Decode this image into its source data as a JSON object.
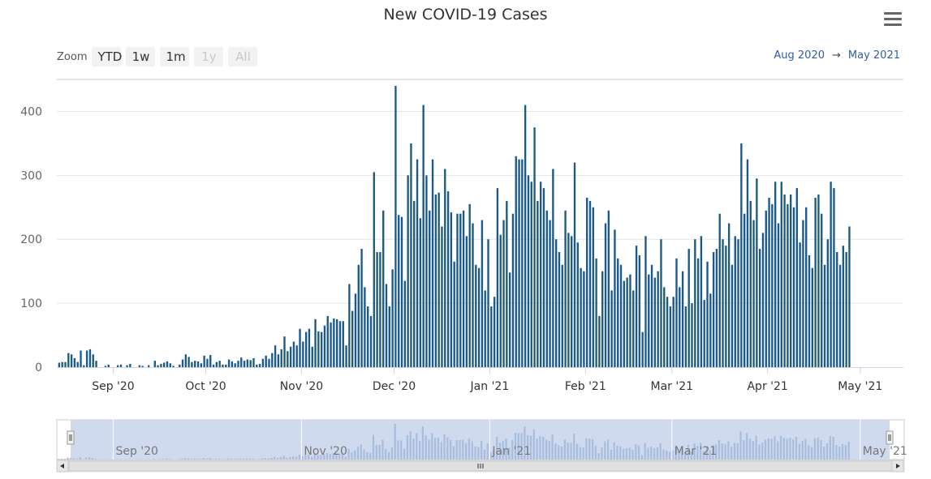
{
  "title": "New COVID-19 Cases",
  "menu_icon": "hamburger-menu-icon",
  "zoom": {
    "label": "Zoom",
    "buttons": [
      {
        "label": "YTD",
        "enabled": true
      },
      {
        "label": "1w",
        "enabled": true
      },
      {
        "label": "1m",
        "enabled": true
      },
      {
        "label": "1y",
        "enabled": false
      },
      {
        "label": "All",
        "enabled": false
      }
    ]
  },
  "range": {
    "from": "Aug 2020",
    "arrow": "→",
    "to": "May 2021"
  },
  "colors": {
    "bar": "#1b5a87",
    "nav_bar": "#a9bede",
    "nav_mask": "#cfdaee",
    "grid": "#e6e6e6"
  },
  "chart_data": {
    "type": "bar",
    "title": "New COVID-19 Cases",
    "x_start": "2020-08-14",
    "x_end": "2021-05-14",
    "ylim": [
      0,
      450
    ],
    "y_ticks": [
      0,
      100,
      200,
      300,
      400
    ],
    "x_ticks": [
      "Sep '20",
      "Oct '20",
      "Nov '20",
      "Dec '20",
      "Jan '21",
      "Feb '21",
      "Mar '21",
      "Apr '21",
      "May '21"
    ],
    "x_tick_dates": [
      "2020-09-01",
      "2020-10-01",
      "2020-11-01",
      "2020-12-01",
      "2021-01-01",
      "2021-02-01",
      "2021-03-01",
      "2021-04-01",
      "2021-05-01"
    ],
    "navigator_ticks": [
      "Sep '20",
      "Nov '20",
      "Jan '21",
      "Mar '21",
      "May '21"
    ],
    "navigator_tick_dates": [
      "2020-09-01",
      "2020-11-01",
      "2021-01-01",
      "2021-03-01",
      "2021-05-01"
    ],
    "grid": true,
    "legend": "none",
    "values": [
      7,
      8,
      8,
      22,
      20,
      14,
      8,
      26,
      3,
      26,
      28,
      20,
      10,
      0,
      0,
      2,
      4,
      0,
      0,
      3,
      4,
      0,
      3,
      5,
      0,
      0,
      3,
      2,
      0,
      3,
      0,
      10,
      3,
      5,
      7,
      9,
      6,
      2,
      0,
      4,
      12,
      20,
      16,
      8,
      10,
      9,
      6,
      18,
      13,
      19,
      4,
      8,
      10,
      4,
      4,
      12,
      9,
      6,
      10,
      15,
      10,
      12,
      11,
      14,
      4,
      5,
      13,
      18,
      13,
      22,
      34,
      20,
      28,
      48,
      25,
      32,
      40,
      34,
      60,
      40,
      55,
      60,
      32,
      75,
      56,
      55,
      65,
      80,
      70,
      76,
      75,
      72,
      72,
      34,
      130,
      88,
      115,
      160,
      185,
      125,
      95,
      80,
      305,
      180,
      180,
      245,
      130,
      95,
      153,
      440,
      238,
      235,
      135,
      300,
      350,
      260,
      325,
      233,
      410,
      300,
      245,
      325,
      270,
      273,
      220,
      310,
      275,
      242,
      165,
      240,
      240,
      245,
      205,
      255,
      225,
      160,
      155,
      230,
      120,
      200,
      95,
      110,
      280,
      207,
      230,
      260,
      148,
      240,
      330,
      325,
      325,
      410,
      300,
      290,
      375,
      260,
      290,
      280,
      245,
      230,
      310,
      200,
      180,
      160,
      245,
      210,
      205,
      320,
      195,
      155,
      150,
      265,
      260,
      250,
      170,
      80,
      150,
      225,
      245,
      120,
      215,
      170,
      160,
      135,
      140,
      145,
      120,
      190,
      175,
      55,
      205,
      145,
      160,
      140,
      150,
      200,
      125,
      110,
      95,
      110,
      170,
      125,
      150,
      95,
      185,
      100,
      200,
      170,
      205,
      105,
      165,
      115,
      180,
      185,
      240,
      200,
      190,
      225,
      160,
      205,
      200,
      350,
      240,
      325,
      260,
      230,
      295,
      185,
      210,
      245,
      265,
      255,
      290,
      225,
      290,
      270,
      255,
      270,
      250,
      280,
      195,
      230,
      250,
      175,
      155,
      265,
      270,
      240,
      160,
      200,
      290,
      280,
      180,
      160,
      190,
      180,
      220
    ]
  }
}
